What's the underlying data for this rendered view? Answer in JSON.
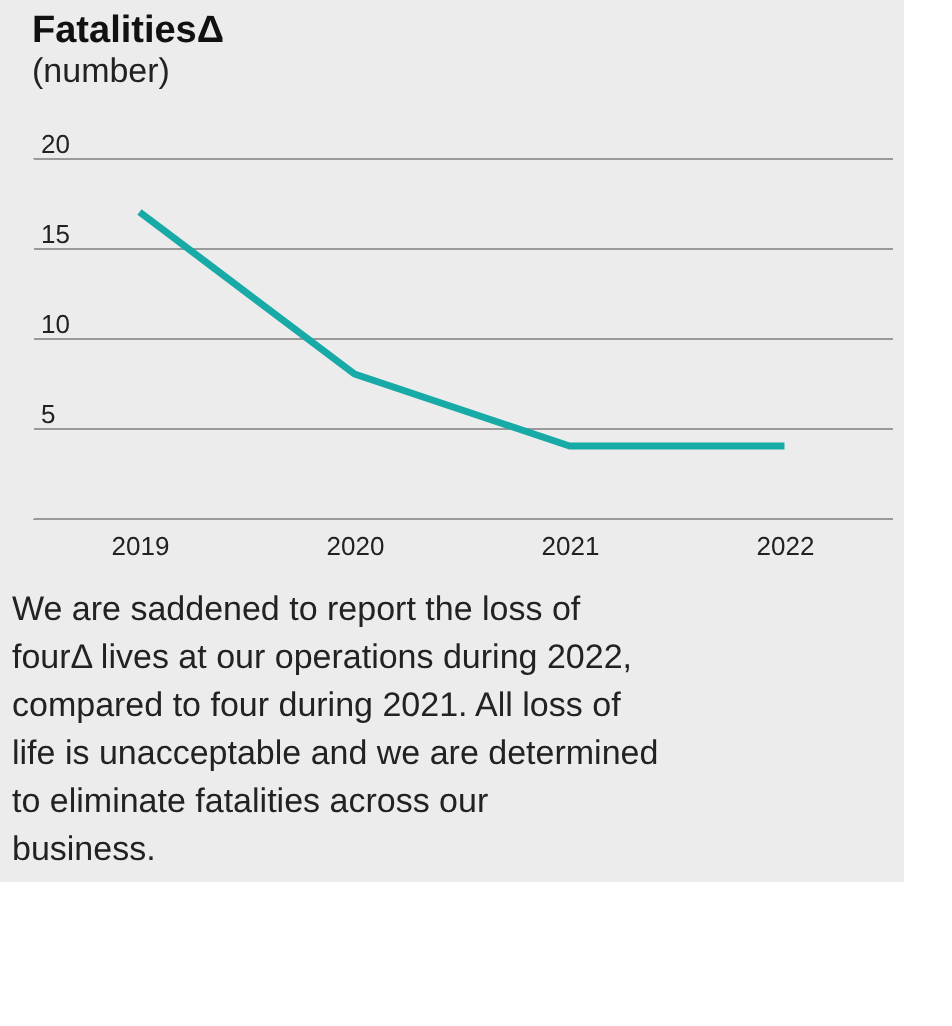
{
  "chart_data": {
    "type": "line",
    "title": "FatalitiesΔ",
    "subtitle": "(number)",
    "categories": [
      "2019",
      "2020",
      "2021",
      "2022"
    ],
    "series": [
      {
        "color": "#17aaa6",
        "values": [
          17,
          8,
          4,
          4
        ]
      }
    ],
    "ylim": [
      0,
      20
    ],
    "yticks": [
      {
        "value": 0,
        "label": null
      },
      5,
      10,
      15,
      20
    ],
    "grid": "y",
    "marker": "none",
    "line_style": "solid",
    "annotations": [
      "We are saddened to report the loss of fourΔ lives at our operations during 2022, compared to four during 2021. All loss of life is unacceptable and we are determined to eliminate fatalities across our business."
    ]
  }
}
